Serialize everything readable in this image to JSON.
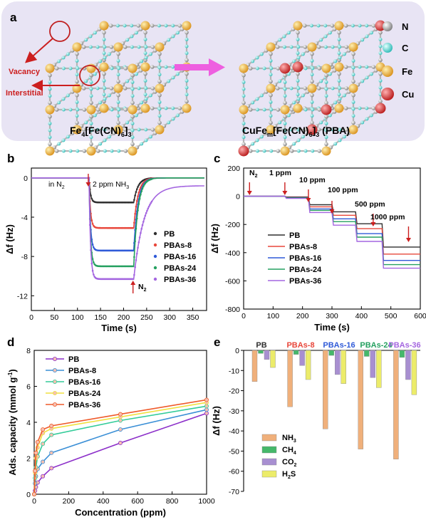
{
  "colors": {
    "N": "#9a9a9a",
    "C": "#3fd3cf",
    "Fe": "#f0b230",
    "Cu": "#d92b2b",
    "PB": "#2f2f2f",
    "PBAs-8": "#e8473b",
    "PBAs-16": "#2f5ad8",
    "PBAs-24": "#25a060",
    "PBAs-36": "#a466e0",
    "NH3": "#f0b07b",
    "CH4": "#45b86a",
    "CO2": "#a88fd1",
    "H2S": "#ecec6a",
    "ads-PB": "#8c2fc9",
    "ads-PBAs-8": "#3a8fd6",
    "ads-PBAs-16": "#33cc99",
    "ads-PBAs-24": "#f0e040",
    "ads-PBAs-36": "#ef5a2a",
    "panel_a_bg": "#e7e3f3",
    "arrow_red": "#cc1f1f",
    "arrow_pink": "#ee5fe0"
  },
  "panel_a": {
    "letter": "a",
    "left_label": "Fe",
    "left_label_sub1": "4",
    "left_label_mid": "[Fe(CN)",
    "left_label_sub2": "6",
    "left_label_end": "]",
    "left_label_sub3": "3",
    "right_label": "CuFe",
    "right_label_sub1": "m",
    "right_label_mid": "[Fe(CN)",
    "right_label_sub2": "6",
    "right_label_end": "]",
    "right_label_sub3": "3",
    "right_label_tail": " (PBA)",
    "vacancy": "Vacancy",
    "interstitial": "Interstitial",
    "legend": [
      "N",
      "C",
      "Fe",
      "Cu"
    ]
  },
  "panel_b": {
    "letter": "b",
    "ann_in_n2": "in N",
    "ann_in_n2_sub": "2",
    "ann_nh3": "2 ppm NH",
    "ann_nh3_sub": "3",
    "ann_n2": "N",
    "ann_n2_sub": "2"
  },
  "panel_c": {
    "letter": "c",
    "annotations": [
      "N",
      "1 ppm",
      "10 ppm",
      "100 ppm",
      "500 ppm",
      "1000 ppm"
    ],
    "ann_n2_sub": "2"
  },
  "panel_d": {
    "letter": "d"
  },
  "panel_e": {
    "letter": "e"
  },
  "chart_data": [
    {
      "id": "b",
      "type": "scatter",
      "xlabel": "Time (s)",
      "ylabel": "Δf (Hz)",
      "xlim": [
        0,
        380
      ],
      "ylim": [
        -13.5,
        1
      ],
      "xticks": [
        0,
        50,
        100,
        150,
        200,
        250,
        300,
        350
      ],
      "yticks": [
        0,
        -4,
        -8,
        -12
      ],
      "legend_position": "right",
      "series": [
        {
          "name": "PB",
          "baseline": 0,
          "plateau": -2.5,
          "recovery": 0
        },
        {
          "name": "PBAs-8",
          "baseline": 0,
          "plateau": -5.1,
          "recovery": 0
        },
        {
          "name": "PBAs-16",
          "baseline": 0,
          "plateau": -7.4,
          "recovery": 0
        },
        {
          "name": "PBAs-24",
          "baseline": 0,
          "plateau": -9.0,
          "recovery": 0
        },
        {
          "name": "PBAs-36",
          "baseline": 0,
          "plateau": -10.3,
          "recovery": -0.8
        }
      ],
      "event_times": {
        "nh3_on": 125,
        "n2_on": 222
      }
    },
    {
      "id": "c",
      "type": "line",
      "xlabel": "Time (s)",
      "ylabel": "Δf (Hz)",
      "xlim": [
        0,
        600
      ],
      "ylim": [
        -800,
        200
      ],
      "xticks": [
        0,
        100,
        200,
        300,
        400,
        500,
        600
      ],
      "yticks": [
        200,
        0,
        -200,
        -400,
        -600,
        -800
      ],
      "legend_position": "left",
      "step_times": [
        0,
        60,
        140,
        220,
        300,
        380,
        470,
        600
      ],
      "series": [
        {
          "name": "PB",
          "values": [
            0,
            0,
            -5,
            -60,
            -110,
            -195,
            -360,
            -380
          ]
        },
        {
          "name": "PBAs-8",
          "values": [
            0,
            0,
            -8,
            -75,
            -135,
            -230,
            -410,
            -420
          ]
        },
        {
          "name": "PBAs-16",
          "values": [
            0,
            0,
            -10,
            -90,
            -160,
            -265,
            -455,
            -465
          ]
        },
        {
          "name": "PBAs-24",
          "values": [
            0,
            0,
            -12,
            -100,
            -180,
            -290,
            -485,
            -495
          ]
        },
        {
          "name": "PBAs-36",
          "values": [
            0,
            0,
            -15,
            -115,
            -205,
            -320,
            -510,
            -520
          ]
        }
      ],
      "arrow_times": [
        20,
        140,
        220,
        300,
        440,
        560
      ]
    },
    {
      "id": "d",
      "type": "line",
      "xlabel": "Concentration (ppm)",
      "ylabel": "Ads. capacity (mmol g",
      "ylabel_sup": "-1",
      "ylabel_end": ")",
      "xlim": [
        0,
        1000
      ],
      "ylim": [
        0,
        8
      ],
      "xticks": [
        0,
        200,
        400,
        600,
        800,
        1000
      ],
      "yticks": [
        0,
        2,
        4,
        6,
        8
      ],
      "legend_position": "top-left",
      "x": [
        0,
        5,
        10,
        20,
        50,
        100,
        500,
        1000
      ],
      "series": [
        {
          "name": "PB",
          "values": [
            0,
            0.2,
            0.4,
            0.65,
            1.0,
            1.45,
            2.85,
            4.5
          ]
        },
        {
          "name": "PBAs-8",
          "values": [
            0,
            0.6,
            1.0,
            1.4,
            1.8,
            2.3,
            3.6,
            4.7
          ]
        },
        {
          "name": "PBAs-16",
          "values": [
            0,
            0.9,
            1.5,
            2.1,
            2.8,
            3.3,
            4.1,
            4.9
          ]
        },
        {
          "name": "PBAs-24",
          "values": [
            0,
            1.2,
            2.0,
            2.6,
            3.4,
            3.65,
            4.3,
            5.1
          ]
        },
        {
          "name": "PBAs-36",
          "values": [
            0,
            1.3,
            2.3,
            2.9,
            3.6,
            3.8,
            4.45,
            5.25
          ]
        }
      ]
    },
    {
      "id": "e",
      "type": "bar",
      "ylabel": "Δf (Hz)",
      "ylim": [
        -70,
        0
      ],
      "yticks": [
        0,
        -10,
        -20,
        -30,
        -40,
        -50,
        -60,
        -70
      ],
      "categories": [
        "PB",
        "PBAs-8",
        "PBAs-16",
        "PBAs-24",
        "PBAs-36"
      ],
      "legend_position": "bottom-left",
      "series": [
        {
          "name": "NH",
          "name_sub": "3",
          "key": "NH3",
          "values": [
            -15.5,
            -28,
            -39,
            -49,
            -54
          ]
        },
        {
          "name": "CH",
          "name_sub": "4",
          "key": "CH4",
          "values": [
            -1.5,
            -2,
            -2.5,
            -3,
            -3.5
          ]
        },
        {
          "name": "CO",
          "name_sub": "2",
          "key": "CO2",
          "values": [
            -4.5,
            -7.5,
            -12,
            -13.5,
            -14.5
          ]
        },
        {
          "name": "H",
          "name_sub": "2",
          "name_tail": "S",
          "key": "H2S",
          "values": [
            -8.5,
            -14.5,
            -16.5,
            -18.5,
            -22
          ]
        }
      ]
    }
  ]
}
